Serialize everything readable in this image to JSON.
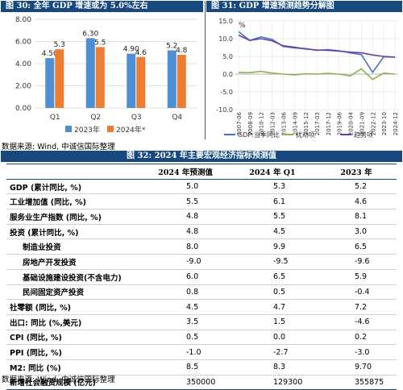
{
  "fig30": {
    "header": "图 30:  全年 GDP 增速或为 5.0%左右",
    "chart_data": {
      "type": "bar",
      "categories": [
        "Q1",
        "Q2",
        "Q3",
        "Q4"
      ],
      "series": [
        {
          "name": "2023年",
          "values": [
            4.5,
            6.3,
            4.9,
            5.2
          ],
          "labels": [
            "4.50",
            "6.30",
            "4.90",
            "5.2"
          ],
          "color": "#4e8ed4"
        },
        {
          "name": "2024年*",
          "values": [
            5.3,
            5.5,
            4.6,
            4.8
          ],
          "labels": [
            "5.3",
            "5.5",
            "4.6",
            "4.8"
          ],
          "color": "#ed7d31"
        }
      ],
      "ylim": [
        0,
        8
      ],
      "yticks": [
        "0.00",
        "2.00",
        "4.00",
        "6.00",
        "8.00"
      ],
      "grid": true,
      "legend": "bottom"
    }
  },
  "fig31": {
    "header": "图 31:  GDP 增速预测趋势分解图",
    "chart_data": {
      "type": "line",
      "y_unit": "%",
      "ylim": [
        -10,
        15
      ],
      "yticks": [
        "15.0",
        "10.0",
        "5.0",
        "0.0",
        "-5.0",
        "-10.0"
      ],
      "x": [
        "2007-06",
        "2008-09",
        "2009-12",
        "2011-03",
        "2012-06",
        "2013-09",
        "2014-12",
        "2016-03",
        "2017-06",
        "2018-09",
        "2019-12",
        "2021-03",
        "2022-06",
        "2023-09",
        "2024-12"
      ],
      "xticks": [
        "2007-06",
        "2008-09",
        "2010-12",
        "2012-03",
        "2013-06",
        "2014-09",
        "2015-12",
        "2017-03",
        "2017-12",
        "2019-06",
        "2020-04",
        "2021-09",
        "2022-12",
        "2023-10",
        "2024-12"
      ],
      "series": [
        {
          "name": "GDP:当季同比",
          "color": "#4472c4",
          "values": [
            12.0,
            9.5,
            10.5,
            9.8,
            7.8,
            7.4,
            7.2,
            6.7,
            6.9,
            6.6,
            6.0,
            5.5,
            0.5,
            4.9,
            4.8
          ]
        },
        {
          "name": "扰动项",
          "color": "#8db14c",
          "values": [
            0.5,
            0.4,
            0.8,
            0.3,
            0.0,
            -0.2,
            0.1,
            0.0,
            0.2,
            0.0,
            -0.5,
            1.5,
            -1.5,
            0.3,
            0.0
          ]
        },
        {
          "name": "趋势项",
          "color": "#6b3fa0",
          "values": [
            11.0,
            9.5,
            10.0,
            9.4,
            8.0,
            7.6,
            7.1,
            6.8,
            6.7,
            6.5,
            6.2,
            6.0,
            5.4,
            5.0,
            4.8
          ]
        }
      ],
      "legend": "bottom",
      "grid": true
    }
  },
  "source1": "数据来源: Wind, 中诚信国际整理",
  "fig32": {
    "header": "图 32:  2024 年主要宏观经济指标预测值",
    "columns": [
      "",
      "2024 年预测值",
      "2024 年 Q1",
      "2023 年"
    ],
    "rows": [
      {
        "label": "GDP (累计同比, %)",
        "indent": false,
        "v1": "5.0",
        "v2": "5.3",
        "v3": "5.2"
      },
      {
        "label": "工业增加值 (同比, %)",
        "indent": false,
        "v1": "5.5",
        "v2": "6.1",
        "v3": "4.6"
      },
      {
        "label": "服务业生产指数 (同比, %)",
        "indent": false,
        "v1": "4.8",
        "v2": "5.5",
        "v3": "8.1"
      },
      {
        "label": "投资 (累计同比, %)",
        "indent": false,
        "v1": "4.8",
        "v2": "4.5",
        "v3": "3.0"
      },
      {
        "label": "制造业投资",
        "indent": true,
        "v1": "8.0",
        "v2": "9.9",
        "v3": "6.5"
      },
      {
        "label": "房地产开发投资",
        "indent": true,
        "v1": "-9.0",
        "v2": "-9.5",
        "v3": "-9.6"
      },
      {
        "label": "基础设施建设投资(不含电力)",
        "indent": true,
        "v1": "6.0",
        "v2": "6.5",
        "v3": "5.9"
      },
      {
        "label": "民间固定资产投资",
        "indent": true,
        "v1": "0.8",
        "v2": "0.5",
        "v3": "-0.4"
      },
      {
        "label": "社零额 (同比, %)",
        "indent": false,
        "v1": "4.5",
        "v2": "4.7",
        "v3": "7.2"
      },
      {
        "label": "出口: 同比 (%,美元)",
        "indent": false,
        "v1": "3.5",
        "v2": "1.5",
        "v3": "-4.6"
      },
      {
        "label": "CPI (同比, %)",
        "indent": false,
        "v1": "0.5",
        "v2": "0.0",
        "v3": "0.2"
      },
      {
        "label": "PPI (同比, %)",
        "indent": false,
        "v1": "-1.0",
        "v2": "-2.7",
        "v3": "-3.0"
      },
      {
        "label": "M2: 同比 (%)",
        "indent": false,
        "v1": "8.5",
        "v2": "8.3",
        "v3": "9.70"
      },
      {
        "label": "新增社会融资规模 (亿元)",
        "indent": false,
        "v1": "350000",
        "v2": "129300",
        "v3": "355875"
      }
    ]
  },
  "source2": "数据来源: Wind, 中诚信国际整理"
}
